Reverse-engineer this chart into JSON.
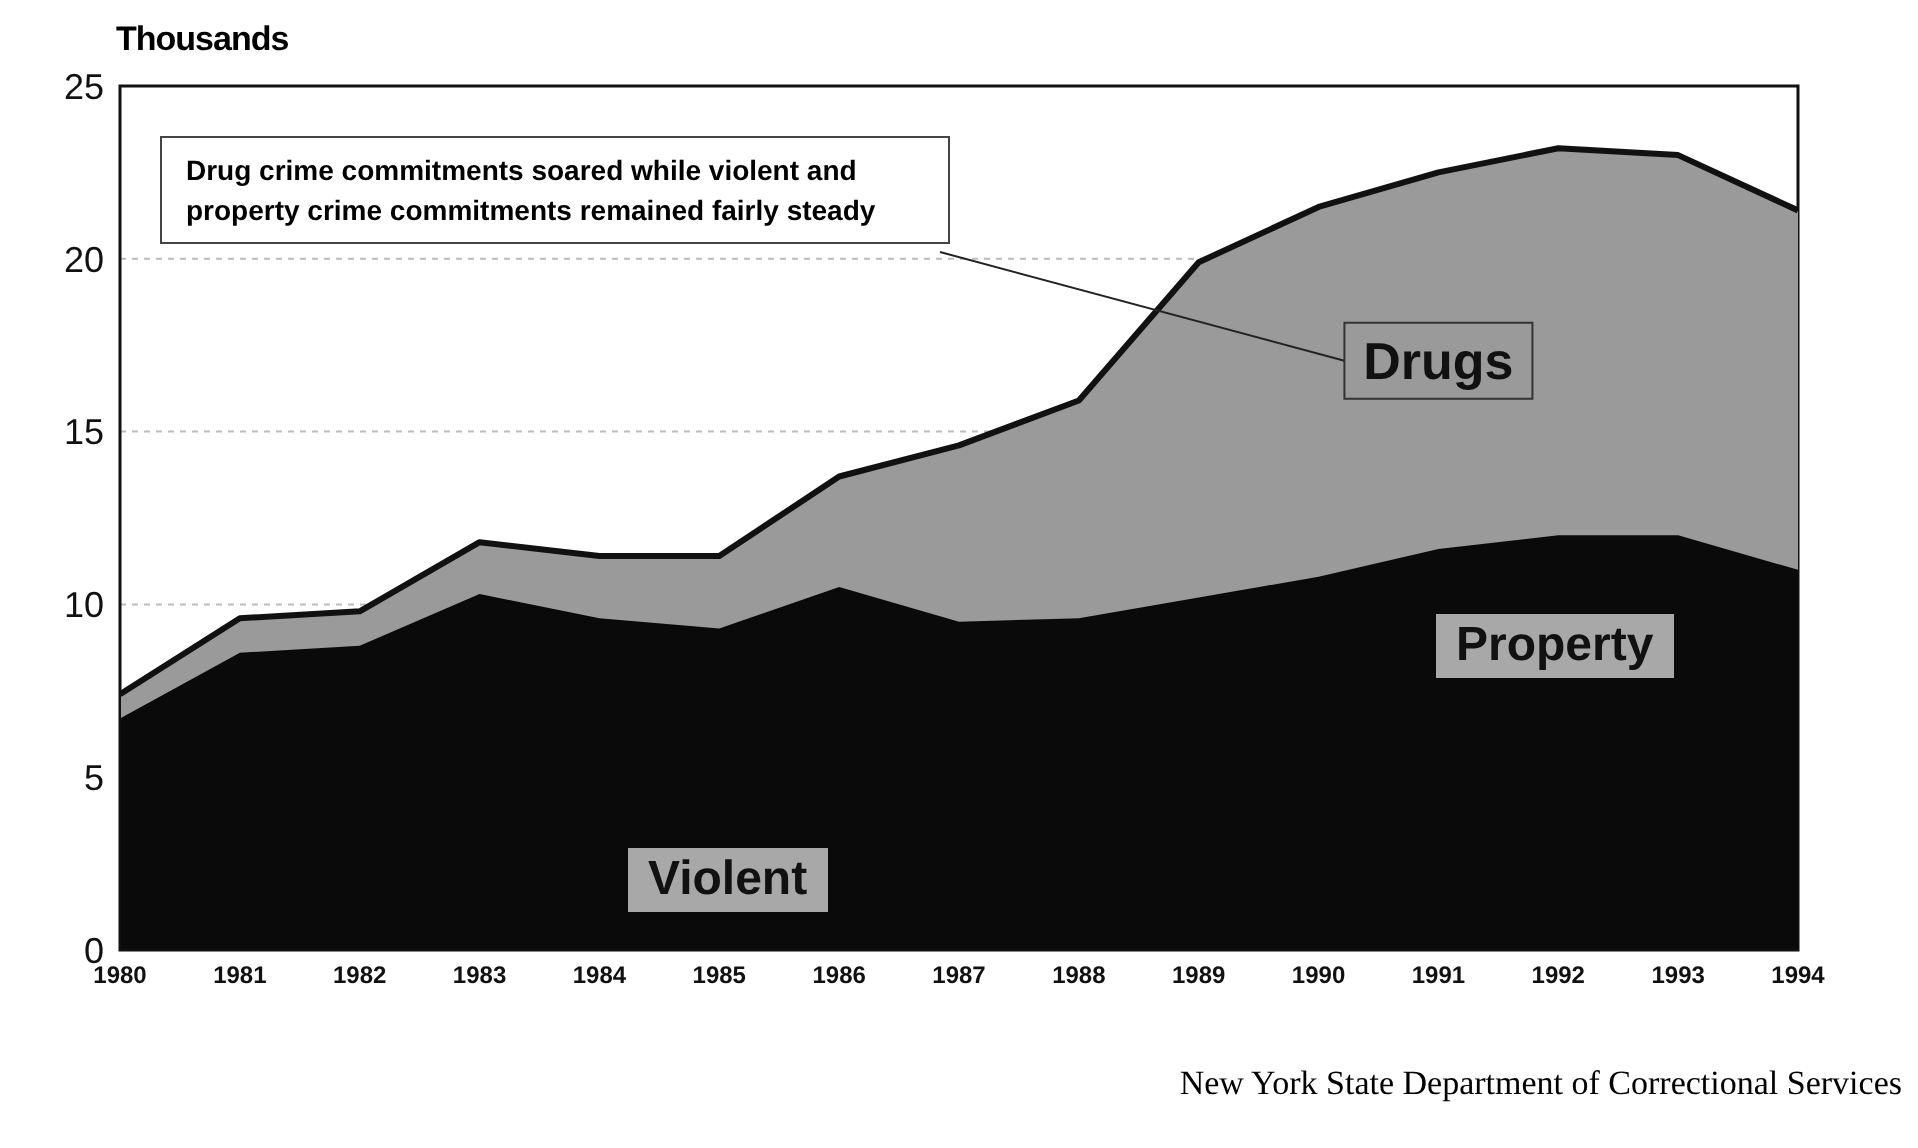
{
  "chart_data": {
    "type": "area",
    "ylabel": "Thousands",
    "stacked": true,
    "x": [
      1980,
      1981,
      1982,
      1983,
      1984,
      1985,
      1986,
      1987,
      1988,
      1989,
      1990,
      1991,
      1992,
      1993,
      1994
    ],
    "series": [
      {
        "color": "#0a0a0a",
        "values": [
          6.7,
          8.6,
          8.8,
          10.3,
          9.6,
          9.3,
          10.5,
          9.5,
          9.6,
          10.2,
          10.8,
          11.6,
          12.0,
          12.0,
          11.0
        ]
      },
      {
        "name": "Drugs",
        "color": "#9a9a9a",
        "values": [
          0.7,
          1.0,
          1.0,
          1.5,
          1.8,
          2.1,
          3.2,
          5.1,
          6.3,
          9.7,
          10.7,
          10.9,
          11.2,
          11.0,
          10.4
        ]
      }
    ],
    "xlim": [
      1980,
      1994
    ],
    "xticks": [
      1980,
      1981,
      1982,
      1983,
      1984,
      1985,
      1986,
      1987,
      1988,
      1989,
      1990,
      1991,
      1992,
      1993,
      1994
    ],
    "ylim": [
      0,
      25
    ],
    "yticks": [
      0,
      5,
      10,
      15,
      20,
      25
    ],
    "grid": "y",
    "legend": false,
    "annotations": [
      "Drug crime commitments soared while violent and property crime commitments remained fairly steady",
      "Violent",
      "Property",
      "New York State Department of Correctional Services"
    ]
  }
}
